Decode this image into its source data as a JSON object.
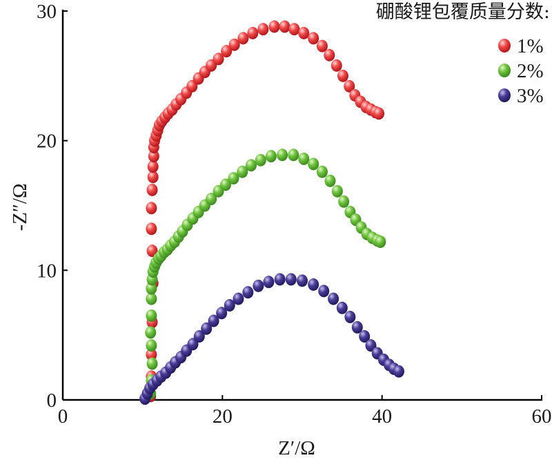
{
  "chart_data": {
    "type": "scatter",
    "xlabel": "Z′/Ω",
    "ylabel": "-Z″/Ω",
    "xlim": [
      0,
      60
    ],
    "ylim": [
      0,
      30
    ],
    "xticks": [
      "0",
      "20",
      "40",
      "60"
    ],
    "yticks": [
      "0",
      "10",
      "20",
      "30"
    ],
    "grid": false,
    "legend": {
      "title": "硼酸锂包覆质量分数:",
      "position": "top-right"
    },
    "series": [
      {
        "name": "1%",
        "color": "#e0282a",
        "points": [
          [
            11.0,
            0.3
          ],
          [
            11.1,
            1.8
          ],
          [
            11.1,
            3.5
          ],
          [
            11.2,
            6.0
          ],
          [
            11.3,
            9.0
          ],
          [
            11.2,
            11.5
          ],
          [
            11.1,
            13.2
          ],
          [
            11.1,
            14.8
          ],
          [
            11.2,
            16.2
          ],
          [
            11.3,
            17.2
          ],
          [
            11.3,
            18.0
          ],
          [
            11.4,
            18.8
          ],
          [
            11.4,
            19.5
          ],
          [
            11.5,
            20.0
          ],
          [
            11.7,
            20.4
          ],
          [
            11.9,
            20.8
          ],
          [
            12.1,
            21.2
          ],
          [
            12.4,
            21.5
          ],
          [
            12.8,
            21.8
          ],
          [
            13.2,
            22.1
          ],
          [
            13.7,
            22.4
          ],
          [
            14.2,
            22.8
          ],
          [
            14.8,
            23.2
          ],
          [
            15.5,
            23.7
          ],
          [
            16.2,
            24.2
          ],
          [
            17.0,
            24.8
          ],
          [
            17.8,
            25.3
          ],
          [
            18.6,
            25.8
          ],
          [
            19.5,
            26.3
          ],
          [
            20.5,
            26.9
          ],
          [
            21.5,
            27.4
          ],
          [
            22.6,
            27.9
          ],
          [
            23.8,
            28.3
          ],
          [
            25.1,
            28.6
          ],
          [
            26.5,
            28.8
          ],
          [
            27.8,
            28.8
          ],
          [
            29.0,
            28.6
          ],
          [
            30.2,
            28.3
          ],
          [
            31.4,
            27.9
          ],
          [
            32.5,
            27.3
          ],
          [
            33.4,
            26.6
          ],
          [
            34.3,
            25.8
          ],
          [
            35.1,
            25.0
          ],
          [
            35.9,
            24.2
          ],
          [
            36.6,
            23.5
          ],
          [
            37.3,
            23.0
          ],
          [
            38.0,
            22.6
          ],
          [
            38.6,
            22.4
          ],
          [
            39.2,
            22.2
          ],
          [
            39.6,
            22.1
          ]
        ]
      },
      {
        "name": "2%",
        "color": "#5bb431",
        "points": [
          [
            11.0,
            0.5
          ],
          [
            11.1,
            1.5
          ],
          [
            11.2,
            2.8
          ],
          [
            11.1,
            4.2
          ],
          [
            11.0,
            5.2
          ],
          [
            11.1,
            6.5
          ],
          [
            11.1,
            7.8
          ],
          [
            11.1,
            8.6
          ],
          [
            11.2,
            9.3
          ],
          [
            11.3,
            9.9
          ],
          [
            11.5,
            10.3
          ],
          [
            11.7,
            10.6
          ],
          [
            12.0,
            10.9
          ],
          [
            12.3,
            11.1
          ],
          [
            12.7,
            11.4
          ],
          [
            13.1,
            11.6
          ],
          [
            13.5,
            11.9
          ],
          [
            14.0,
            12.2
          ],
          [
            14.5,
            12.6
          ],
          [
            15.0,
            13.0
          ],
          [
            15.6,
            13.5
          ],
          [
            16.3,
            14.0
          ],
          [
            17.0,
            14.5
          ],
          [
            17.8,
            15.0
          ],
          [
            18.6,
            15.5
          ],
          [
            19.5,
            16.1
          ],
          [
            20.4,
            16.6
          ],
          [
            21.4,
            17.1
          ],
          [
            22.5,
            17.6
          ],
          [
            23.6,
            18.1
          ],
          [
            24.8,
            18.5
          ],
          [
            26.1,
            18.8
          ],
          [
            27.5,
            18.9
          ],
          [
            28.9,
            18.9
          ],
          [
            30.2,
            18.6
          ],
          [
            31.4,
            18.2
          ],
          [
            32.5,
            17.6
          ],
          [
            33.5,
            16.9
          ],
          [
            34.4,
            16.1
          ],
          [
            35.2,
            15.3
          ],
          [
            36.0,
            14.5
          ],
          [
            36.7,
            13.9
          ],
          [
            37.4,
            13.3
          ],
          [
            38.1,
            12.8
          ],
          [
            38.8,
            12.5
          ],
          [
            39.4,
            12.3
          ],
          [
            39.8,
            12.2
          ]
        ]
      },
      {
        "name": "3%",
        "color": "#3b2d82",
        "points": [
          [
            10.3,
            0.1
          ],
          [
            10.6,
            0.5
          ],
          [
            10.9,
            0.9
          ],
          [
            11.3,
            1.2
          ],
          [
            11.8,
            1.5
          ],
          [
            12.3,
            1.8
          ],
          [
            12.9,
            2.1
          ],
          [
            13.5,
            2.5
          ],
          [
            14.1,
            2.9
          ],
          [
            14.8,
            3.3
          ],
          [
            15.5,
            3.8
          ],
          [
            16.3,
            4.3
          ],
          [
            17.1,
            4.9
          ],
          [
            18.0,
            5.5
          ],
          [
            18.9,
            6.1
          ],
          [
            19.9,
            6.7
          ],
          [
            20.9,
            7.3
          ],
          [
            22.0,
            7.8
          ],
          [
            23.2,
            8.3
          ],
          [
            24.5,
            8.8
          ],
          [
            25.8,
            9.1
          ],
          [
            27.2,
            9.3
          ],
          [
            28.6,
            9.3
          ],
          [
            30.0,
            9.2
          ],
          [
            31.4,
            8.9
          ],
          [
            32.7,
            8.4
          ],
          [
            33.9,
            7.8
          ],
          [
            35.0,
            7.1
          ],
          [
            36.0,
            6.4
          ],
          [
            36.9,
            5.6
          ],
          [
            37.8,
            4.9
          ],
          [
            38.6,
            4.2
          ],
          [
            39.4,
            3.6
          ],
          [
            40.2,
            3.1
          ],
          [
            40.9,
            2.7
          ],
          [
            41.5,
            2.4
          ],
          [
            42.1,
            2.2
          ]
        ]
      }
    ]
  }
}
